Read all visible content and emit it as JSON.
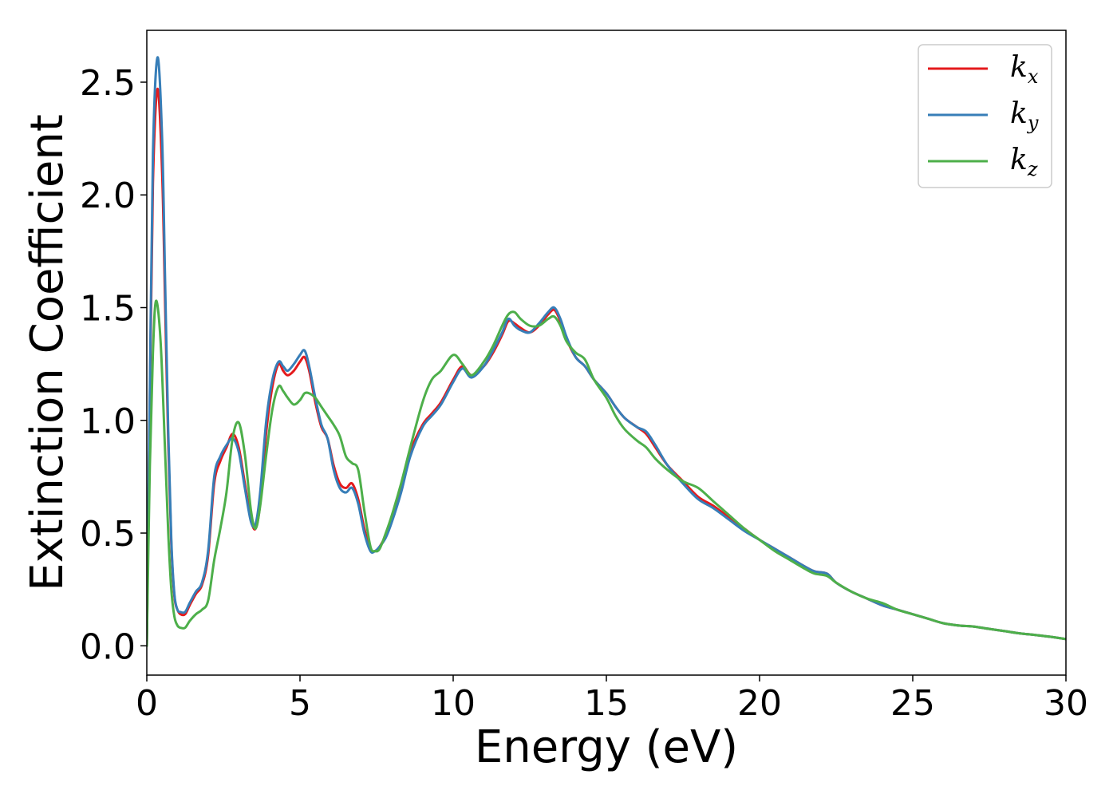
{
  "chart_data": {
    "type": "line",
    "xlabel": "Energy (eV)",
    "ylabel": "Extinction Coefficient",
    "xlim": [
      0,
      30
    ],
    "ylim": [
      -0.13,
      2.73
    ],
    "xticks": [
      "0",
      "5",
      "10",
      "15",
      "20",
      "25",
      "30"
    ],
    "yticks": [
      "0.0",
      "0.5",
      "1.0",
      "1.5",
      "2.0",
      "2.5"
    ],
    "grid": false,
    "legend_position": "top-right",
    "series": [
      {
        "name": "k_x",
        "label_main": "k",
        "label_sub": "x",
        "color": "#e41a1c",
        "x": [
          0,
          0.1,
          0.2,
          0.35,
          0.5,
          0.6,
          0.7,
          0.8,
          0.9,
          1.0,
          1.1,
          1.25,
          1.4,
          1.6,
          1.8,
          2.0,
          2.2,
          2.4,
          2.6,
          2.8,
          3.0,
          3.2,
          3.4,
          3.55,
          3.7,
          3.9,
          4.1,
          4.3,
          4.45,
          4.6,
          4.8,
          5.0,
          5.15,
          5.3,
          5.5,
          5.7,
          5.9,
          6.1,
          6.3,
          6.5,
          6.7,
          6.9,
          7.1,
          7.3,
          7.45,
          7.6,
          7.8,
          8.0,
          8.3,
          8.6,
          9.0,
          9.3,
          9.6,
          10.0,
          10.3,
          10.6,
          11.0,
          11.3,
          11.6,
          11.8,
          12.0,
          12.2,
          12.5,
          12.8,
          13.1,
          13.3,
          13.5,
          13.7,
          14.0,
          14.3,
          14.6,
          15.0,
          15.3,
          15.6,
          16.0,
          16.3,
          16.6,
          17.0,
          17.5,
          18.0,
          18.5,
          19.0,
          19.5,
          20.0,
          20.5,
          21.0,
          21.5,
          21.8,
          22.2,
          22.5,
          23.0,
          23.5,
          24.0,
          24.5,
          25.0,
          25.5,
          26.0,
          26.5,
          27.0,
          27.5,
          28.0,
          28.5,
          29.0,
          29.5,
          30.0
        ],
        "y": [
          0.0,
          1.1,
          2.05,
          2.47,
          2.1,
          1.5,
          0.9,
          0.45,
          0.22,
          0.16,
          0.14,
          0.14,
          0.18,
          0.23,
          0.27,
          0.4,
          0.72,
          0.82,
          0.88,
          0.94,
          0.88,
          0.72,
          0.56,
          0.52,
          0.63,
          0.95,
          1.15,
          1.25,
          1.22,
          1.2,
          1.22,
          1.26,
          1.28,
          1.22,
          1.08,
          0.97,
          0.92,
          0.8,
          0.72,
          0.7,
          0.72,
          0.65,
          0.52,
          0.43,
          0.42,
          0.44,
          0.49,
          0.56,
          0.7,
          0.86,
          0.98,
          1.03,
          1.08,
          1.18,
          1.24,
          1.2,
          1.24,
          1.3,
          1.38,
          1.44,
          1.43,
          1.41,
          1.39,
          1.42,
          1.47,
          1.49,
          1.44,
          1.36,
          1.28,
          1.24,
          1.18,
          1.12,
          1.06,
          1.01,
          0.97,
          0.94,
          0.88,
          0.8,
          0.73,
          0.66,
          0.62,
          0.57,
          0.52,
          0.47,
          0.43,
          0.39,
          0.35,
          0.33,
          0.32,
          0.28,
          0.24,
          0.21,
          0.18,
          0.16,
          0.14,
          0.12,
          0.1,
          0.09,
          0.085,
          0.075,
          0.065,
          0.055,
          0.048,
          0.04,
          0.03
        ]
      },
      {
        "name": "k_y",
        "label_main": "k",
        "label_sub": "y",
        "color": "#377eb8",
        "x": [
          0,
          0.1,
          0.2,
          0.35,
          0.5,
          0.6,
          0.7,
          0.8,
          0.9,
          1.0,
          1.1,
          1.25,
          1.4,
          1.6,
          1.8,
          2.0,
          2.2,
          2.4,
          2.6,
          2.8,
          3.0,
          3.2,
          3.4,
          3.55,
          3.7,
          3.9,
          4.1,
          4.3,
          4.45,
          4.6,
          4.8,
          5.0,
          5.15,
          5.3,
          5.5,
          5.7,
          5.9,
          6.1,
          6.3,
          6.5,
          6.7,
          6.9,
          7.1,
          7.3,
          7.45,
          7.6,
          7.8,
          8.0,
          8.3,
          8.6,
          9.0,
          9.3,
          9.6,
          10.0,
          10.3,
          10.6,
          11.0,
          11.3,
          11.6,
          11.8,
          12.0,
          12.2,
          12.5,
          12.8,
          13.1,
          13.3,
          13.5,
          13.7,
          14.0,
          14.3,
          14.6,
          15.0,
          15.3,
          15.6,
          16.0,
          16.3,
          16.6,
          17.0,
          17.5,
          18.0,
          18.5,
          19.0,
          19.5,
          20.0,
          20.5,
          21.0,
          21.5,
          21.8,
          22.2,
          22.5,
          23.0,
          23.5,
          24.0,
          24.5,
          25.0,
          25.5,
          26.0,
          26.5,
          27.0,
          27.5,
          28.0,
          28.5,
          29.0,
          29.5,
          30.0
        ],
        "y": [
          0.0,
          1.15,
          2.18,
          2.61,
          2.25,
          1.6,
          0.95,
          0.47,
          0.23,
          0.16,
          0.15,
          0.15,
          0.19,
          0.24,
          0.28,
          0.42,
          0.75,
          0.84,
          0.89,
          0.92,
          0.86,
          0.7,
          0.55,
          0.54,
          0.68,
          1.0,
          1.18,
          1.26,
          1.24,
          1.22,
          1.25,
          1.29,
          1.31,
          1.24,
          1.1,
          0.98,
          0.92,
          0.78,
          0.7,
          0.68,
          0.7,
          0.63,
          0.5,
          0.42,
          0.42,
          0.44,
          0.48,
          0.55,
          0.68,
          0.84,
          0.97,
          1.02,
          1.07,
          1.17,
          1.23,
          1.19,
          1.24,
          1.31,
          1.39,
          1.45,
          1.42,
          1.4,
          1.39,
          1.43,
          1.48,
          1.5,
          1.45,
          1.37,
          1.28,
          1.24,
          1.18,
          1.12,
          1.06,
          1.01,
          0.97,
          0.95,
          0.89,
          0.8,
          0.72,
          0.65,
          0.61,
          0.56,
          0.51,
          0.47,
          0.43,
          0.39,
          0.35,
          0.33,
          0.32,
          0.28,
          0.24,
          0.21,
          0.18,
          0.16,
          0.14,
          0.12,
          0.1,
          0.09,
          0.085,
          0.075,
          0.065,
          0.055,
          0.048,
          0.04,
          0.03
        ]
      },
      {
        "name": "k_z",
        "label_main": "k",
        "label_sub": "z",
        "color": "#4daf4a",
        "x": [
          0,
          0.1,
          0.2,
          0.3,
          0.45,
          0.6,
          0.7,
          0.8,
          0.9,
          1.0,
          1.1,
          1.25,
          1.4,
          1.6,
          1.8,
          2.0,
          2.2,
          2.4,
          2.6,
          2.8,
          3.0,
          3.2,
          3.4,
          3.55,
          3.7,
          3.9,
          4.1,
          4.3,
          4.45,
          4.6,
          4.8,
          5.0,
          5.15,
          5.3,
          5.5,
          5.7,
          5.9,
          6.1,
          6.3,
          6.5,
          6.7,
          6.9,
          7.1,
          7.3,
          7.45,
          7.6,
          7.8,
          8.0,
          8.3,
          8.6,
          9.0,
          9.3,
          9.6,
          10.0,
          10.3,
          10.6,
          11.0,
          11.3,
          11.6,
          11.8,
          12.0,
          12.2,
          12.5,
          12.8,
          13.1,
          13.3,
          13.5,
          13.7,
          14.0,
          14.3,
          14.6,
          15.0,
          15.3,
          15.6,
          16.0,
          16.3,
          16.6,
          17.0,
          17.5,
          18.0,
          18.5,
          19.0,
          19.5,
          20.0,
          20.5,
          21.0,
          21.5,
          21.8,
          22.2,
          22.5,
          23.0,
          23.5,
          24.0,
          24.5,
          25.0,
          25.5,
          26.0,
          26.5,
          27.0,
          27.5,
          28.0,
          28.5,
          29.0,
          29.5,
          30.0
        ],
        "y": [
          0.0,
          0.8,
          1.3,
          1.53,
          1.35,
          0.85,
          0.5,
          0.25,
          0.13,
          0.09,
          0.08,
          0.08,
          0.11,
          0.14,
          0.16,
          0.2,
          0.38,
          0.52,
          0.68,
          0.92,
          0.99,
          0.85,
          0.6,
          0.52,
          0.62,
          0.85,
          1.05,
          1.15,
          1.13,
          1.1,
          1.07,
          1.09,
          1.12,
          1.12,
          1.1,
          1.06,
          1.02,
          0.98,
          0.93,
          0.84,
          0.81,
          0.78,
          0.6,
          0.44,
          0.42,
          0.43,
          0.5,
          0.58,
          0.72,
          0.88,
          1.08,
          1.18,
          1.22,
          1.29,
          1.25,
          1.2,
          1.26,
          1.33,
          1.42,
          1.47,
          1.48,
          1.45,
          1.42,
          1.42,
          1.45,
          1.46,
          1.42,
          1.35,
          1.3,
          1.27,
          1.18,
          1.1,
          1.02,
          0.96,
          0.91,
          0.88,
          0.83,
          0.78,
          0.73,
          0.7,
          0.64,
          0.58,
          0.52,
          0.47,
          0.42,
          0.38,
          0.34,
          0.32,
          0.31,
          0.28,
          0.24,
          0.21,
          0.19,
          0.16,
          0.14,
          0.12,
          0.1,
          0.09,
          0.085,
          0.075,
          0.065,
          0.055,
          0.048,
          0.04,
          0.03
        ]
      }
    ]
  }
}
